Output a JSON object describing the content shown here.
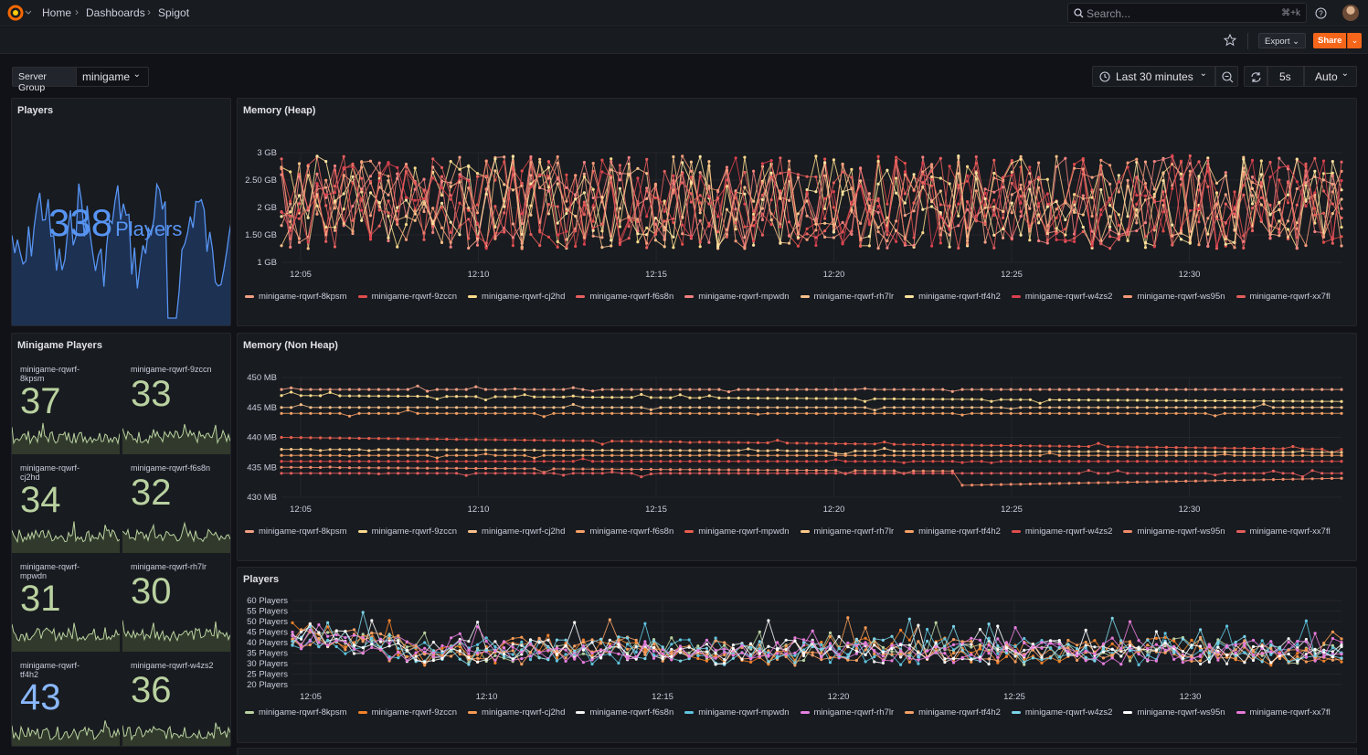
{
  "breadcrumb": {
    "home": "Home",
    "dashboards": "Dashboards",
    "current": "Spigot"
  },
  "search": {
    "placeholder": "Search...",
    "shortcut": "⌘+k"
  },
  "toolbar": {
    "export_label": "Export",
    "share_label": "Share"
  },
  "variables": {
    "server_group_label": "Server Group",
    "server_group_value": "minigame"
  },
  "time_picker": {
    "range": "Last 30 minutes",
    "refresh_interval": "5s",
    "auto_label": "Auto"
  },
  "colors": {
    "accent": "#f5661a",
    "stat_green": "#b9d1a0",
    "players_blue": "#5794f2",
    "background": "#111217",
    "panel": "#181b1f"
  },
  "panels": {
    "players_stat": {
      "title": "Players",
      "value": "338",
      "unit": "Players"
    },
    "minigame_players": {
      "title": "Minigame Players",
      "stats": [
        {
          "name": "minigame-rqwrf-8kpsm",
          "value": "37"
        },
        {
          "name": "minigame-rqwrf-9zccn",
          "value": "33"
        },
        {
          "name": "minigame-rqwrf-cj2hd",
          "value": "34"
        },
        {
          "name": "minigame-rqwrf-f6s8n",
          "value": "32"
        },
        {
          "name": "minigame-rqwrf-mpwdn",
          "value": "31"
        },
        {
          "name": "minigame-rqwrf-rh7lr",
          "value": "30"
        },
        {
          "name": "minigame-rqwrf-tf4h2",
          "value": "43"
        },
        {
          "name": "minigame-rqwrf-w4zs2",
          "value": "36"
        }
      ]
    },
    "memory_heap": {
      "title": "Memory (Heap)"
    },
    "memory_nonheap": {
      "title": "Memory (Non Heap)"
    },
    "players_ts": {
      "title": "Players"
    }
  },
  "chart_data": [
    {
      "type": "line",
      "title": "Memory (Heap)",
      "x_ticks": [
        "12:05",
        "12:10",
        "12:15",
        "12:20",
        "12:25",
        "12:30"
      ],
      "y_ticks": [
        "1 GB",
        "1.50 GB",
        "2 GB",
        "2.50 GB",
        "3 GB"
      ],
      "ylim": [
        1,
        3.2
      ],
      "grid": true,
      "legend_placement": "bottom",
      "series": [
        {
          "name": "minigame-rqwrf-8kpsm",
          "color": "#f2a085",
          "range": [
            1.2,
            3.0
          ]
        },
        {
          "name": "minigame-rqwrf-9zccn",
          "color": "#e04d4d",
          "range": [
            1.2,
            3.0
          ]
        },
        {
          "name": "minigame-rqwrf-cj2hd",
          "color": "#fad98c",
          "range": [
            1.2,
            3.0
          ]
        },
        {
          "name": "minigame-rqwrf-f6s8n",
          "color": "#e86060",
          "range": [
            1.2,
            3.0
          ]
        },
        {
          "name": "minigame-rqwrf-mpwdn",
          "color": "#f08080",
          "range": [
            1.2,
            3.0
          ]
        },
        {
          "name": "minigame-rqwrf-rh7lr",
          "color": "#f7c08a",
          "range": [
            1.2,
            3.0
          ]
        },
        {
          "name": "minigame-rqwrf-tf4h2",
          "color": "#fbe3a0",
          "range": [
            1.2,
            3.0
          ]
        },
        {
          "name": "minigame-rqwrf-w4zs2",
          "color": "#d9404f",
          "range": [
            1.2,
            3.0
          ]
        },
        {
          "name": "minigame-rqwrf-ws95n",
          "color": "#f49a78",
          "range": [
            1.2,
            3.0
          ]
        },
        {
          "name": "minigame-rqwrf-xx7fl",
          "color": "#e35d5d",
          "range": [
            1.2,
            3.0
          ]
        }
      ]
    },
    {
      "type": "line",
      "title": "Memory (Non Heap)",
      "x_ticks": [
        "12:05",
        "12:10",
        "12:15",
        "12:20",
        "12:25",
        "12:30"
      ],
      "y_ticks": [
        "430 MB",
        "435 MB",
        "440 MB",
        "445 MB",
        "450 MB"
      ],
      "ylim": [
        429,
        452
      ],
      "grid": true,
      "legend_placement": "bottom",
      "series": [
        {
          "name": "minigame-rqwrf-8kpsm",
          "color": "#f2a085",
          "start": 448,
          "end": 448
        },
        {
          "name": "minigame-rqwrf-9zccn",
          "color": "#fad98c",
          "start": 447,
          "end": 446
        },
        {
          "name": "minigame-rqwrf-cj2hd",
          "color": "#f7c08a",
          "start": 445,
          "end": 445
        },
        {
          "name": "minigame-rqwrf-f6s8n",
          "color": "#f5a066",
          "start": 444,
          "end": 444
        },
        {
          "name": "minigame-rqwrf-mpwdn",
          "color": "#e85d4d",
          "start": 440,
          "end": 438
        },
        {
          "name": "minigame-rqwrf-rh7lr",
          "color": "#fbc88a",
          "start": 438,
          "end": 437.5
        },
        {
          "name": "minigame-rqwrf-tf4h2",
          "color": "#f5a066",
          "start": 437,
          "end": 437
        },
        {
          "name": "minigame-rqwrf-w4zs2",
          "color": "#e04d4d",
          "start": 436,
          "end": 436
        },
        {
          "name": "minigame-rqwrf-ws95n",
          "color": "#f08a6a",
          "start": 435,
          "end": 434
        },
        {
          "name": "minigame-rqwrf-xx7fl",
          "color": "#e35d5d",
          "start": 434,
          "end": 434
        }
      ]
    },
    {
      "type": "line",
      "title": "Players",
      "x_ticks": [
        "12:05",
        "12:10",
        "12:15",
        "12:20",
        "12:25",
        "12:30"
      ],
      "y_ticks": [
        "20 Players",
        "25 Players",
        "30 Players",
        "35 Players",
        "40 Players",
        "45 Players",
        "50 Players",
        "55 Players",
        "60 Players"
      ],
      "ylim": [
        20,
        60
      ],
      "grid": true,
      "legend_placement": "bottom",
      "series": [
        {
          "name": "minigame-rqwrf-8kpsm",
          "color": "#b9d1a0",
          "mean": 37
        },
        {
          "name": "minigame-rqwrf-9zccn",
          "color": "#f2812a",
          "mean": 33
        },
        {
          "name": "minigame-rqwrf-cj2hd",
          "color": "#f59a52",
          "mean": 34
        },
        {
          "name": "minigame-rqwrf-f6s8n",
          "color": "#f2f2f2",
          "mean": 32
        },
        {
          "name": "minigame-rqwrf-mpwdn",
          "color": "#5ec4df",
          "mean": 31
        },
        {
          "name": "minigame-rqwrf-rh7lr",
          "color": "#e57ee0",
          "mean": 30
        },
        {
          "name": "minigame-rqwrf-tf4h2",
          "color": "#f5a066",
          "mean": 43
        },
        {
          "name": "minigame-rqwrf-w4zs2",
          "color": "#7ad3e8",
          "mean": 36
        },
        {
          "name": "minigame-rqwrf-ws95n",
          "color": "#ffffff",
          "mean": 35
        },
        {
          "name": "minigame-rqwrf-xx7fl",
          "color": "#e67ad8",
          "mean": 34
        }
      ]
    }
  ]
}
